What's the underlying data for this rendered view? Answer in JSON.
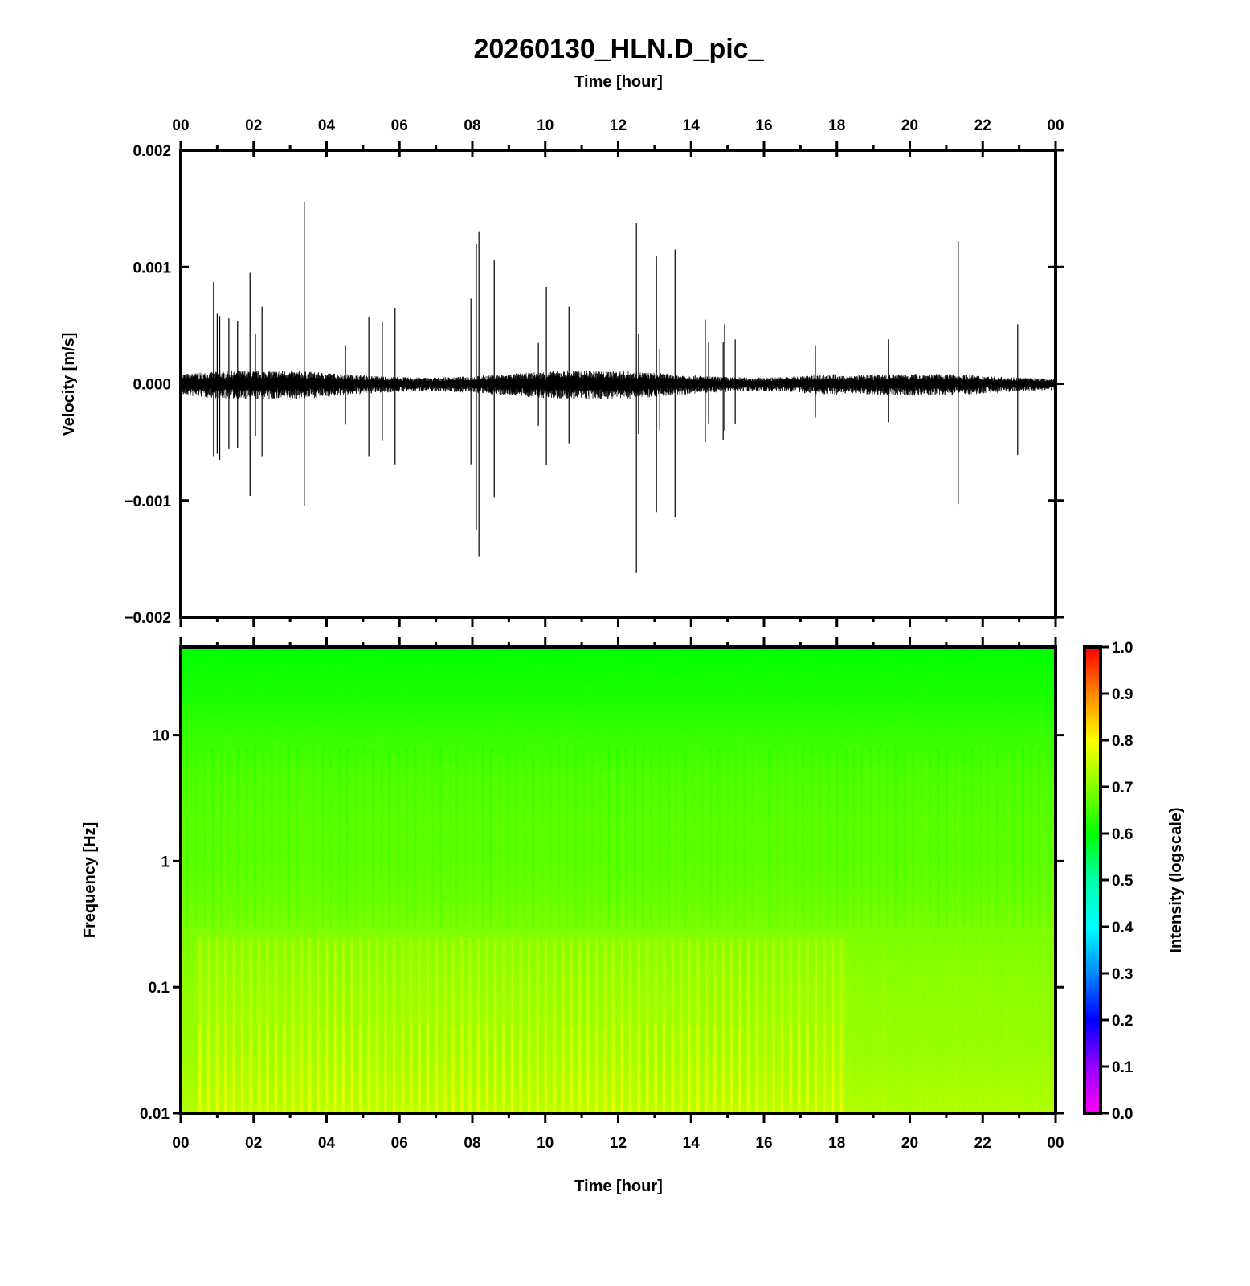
{
  "chart_data": [
    {
      "type": "line",
      "title": "20260130_HLN.D_pic_",
      "xlabel": "Time [hour]",
      "ylabel": "Velocity [m/s]",
      "xlim": [
        0,
        24
      ],
      "ylim": [
        -0.002,
        0.002
      ],
      "x_tick_labels": [
        "00",
        "02",
        "04",
        "06",
        "08",
        "10",
        "12",
        "14",
        "16",
        "18",
        "20",
        "22",
        "00"
      ],
      "y_ticks": [
        -0.002,
        -0.001,
        0.0,
        0.001,
        0.002
      ],
      "y_tick_labels": [
        "−0.002",
        "−0.001",
        "0.000",
        "0.001",
        "0.002"
      ],
      "background_noise_amplitude": 0.0001,
      "events": [
        {
          "hour": 0.9,
          "max": 0.00087,
          "min": -0.00062
        },
        {
          "hour": 1.0,
          "max": 0.0006,
          "min": -0.0006
        },
        {
          "hour": 1.07,
          "max": 0.00058,
          "min": -0.00065
        },
        {
          "hour": 1.32,
          "max": 0.00056,
          "min": -0.00056
        },
        {
          "hour": 1.56,
          "max": 0.00054,
          "min": -0.00055
        },
        {
          "hour": 1.9,
          "max": 0.00095,
          "min": -0.00096
        },
        {
          "hour": 2.05,
          "max": 0.00043,
          "min": -0.00045
        },
        {
          "hour": 2.23,
          "max": 0.00066,
          "min": -0.00062
        },
        {
          "hour": 3.39,
          "max": 0.00156,
          "min": -0.00105
        },
        {
          "hour": 4.52,
          "max": 0.00033,
          "min": -0.00035
        },
        {
          "hour": 5.16,
          "max": 0.00057,
          "min": -0.00062
        },
        {
          "hour": 5.53,
          "max": 0.00053,
          "min": -0.00049
        },
        {
          "hour": 5.88,
          "max": 0.00065,
          "min": -0.00069
        },
        {
          "hour": 7.96,
          "max": 0.00073,
          "min": -0.00069
        },
        {
          "hour": 8.11,
          "max": 0.0012,
          "min": -0.00125
        },
        {
          "hour": 8.18,
          "max": 0.0013,
          "min": -0.00148
        },
        {
          "hour": 8.6,
          "max": 0.00106,
          "min": -0.00097
        },
        {
          "hour": 9.81,
          "max": 0.00035,
          "min": -0.00036
        },
        {
          "hour": 10.03,
          "max": 0.00083,
          "min": -0.0007
        },
        {
          "hour": 10.65,
          "max": 0.00066,
          "min": -0.00051
        },
        {
          "hour": 12.5,
          "max": 0.00138,
          "min": -0.00162
        },
        {
          "hour": 12.56,
          "max": 0.00043,
          "min": -0.00043
        },
        {
          "hour": 13.05,
          "max": 0.00109,
          "min": -0.0011
        },
        {
          "hour": 13.14,
          "max": 0.0003,
          "min": -0.0004
        },
        {
          "hour": 13.56,
          "max": 0.00115,
          "min": -0.00114
        },
        {
          "hour": 14.39,
          "max": 0.00055,
          "min": -0.0005
        },
        {
          "hour": 14.48,
          "max": 0.00036,
          "min": -0.00034
        },
        {
          "hour": 14.88,
          "max": 0.00036,
          "min": -0.00048
        },
        {
          "hour": 14.92,
          "max": 0.00051,
          "min": -0.0004
        },
        {
          "hour": 15.21,
          "max": 0.00038,
          "min": -0.00034
        },
        {
          "hour": 17.41,
          "max": 0.00033,
          "min": -0.00029
        },
        {
          "hour": 19.42,
          "max": 0.00038,
          "min": -0.00033
        },
        {
          "hour": 21.33,
          "max": 0.00122,
          "min": -0.00103
        },
        {
          "hour": 22.96,
          "max": 0.00051,
          "min": -0.00061
        }
      ]
    },
    {
      "type": "heatmap",
      "xlabel": "Time [hour]",
      "ylabel": "Frequency [Hz]",
      "xlim": [
        0,
        24
      ],
      "ylim": [
        0.01,
        50
      ],
      "y_scale": "log",
      "x_tick_labels": [
        "00",
        "02",
        "04",
        "06",
        "08",
        "10",
        "12",
        "14",
        "16",
        "18",
        "20",
        "22",
        "00"
      ],
      "y_ticks": [
        0.01,
        0.1,
        1,
        10
      ],
      "y_tick_labels": [
        "0.01",
        "0.1",
        "1",
        "10"
      ],
      "frequency_profile": {
        "frequency_hz": [
          50,
          20,
          10,
          5,
          2,
          1,
          0.5,
          0.2,
          0.1,
          0.03,
          0.01
        ],
        "intensity": [
          0.6,
          0.62,
          0.64,
          0.66,
          0.67,
          0.67,
          0.68,
          0.7,
          0.71,
          0.72,
          0.74
        ]
      },
      "colorbar": {
        "label": "Intensity (logscale)",
        "range": [
          0.0,
          1.0
        ],
        "tick_labels": [
          "0.0",
          "0.1",
          "0.2",
          "0.3",
          "0.4",
          "0.5",
          "0.6",
          "0.7",
          "0.8",
          "0.9",
          "1.0"
        ],
        "colormap": [
          "#ff00ff",
          "#9900ff",
          "#0000ff",
          "#0088ff",
          "#00ffff",
          "#00ffaa",
          "#00ff00",
          "#88ff00",
          "#ffff00",
          "#ff8800",
          "#ff0000"
        ]
      }
    }
  ]
}
